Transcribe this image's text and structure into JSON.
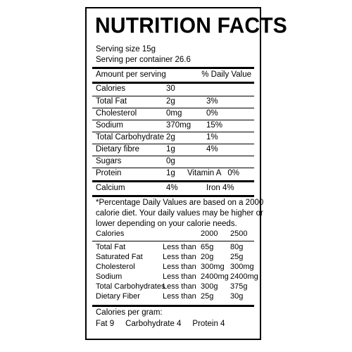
{
  "title": "NUTRITION FACTS",
  "serving_size": "Serving size 15g",
  "servings_per_container": "Serving per container 26.6",
  "header": {
    "amount": "Amount per serving",
    "dv": "% Daily Value"
  },
  "rows": [
    {
      "name": "Calories",
      "amount": "30",
      "dv": ""
    },
    {
      "name": "Total Fat",
      "amount": "2g",
      "dv": "3%"
    },
    {
      "name": "Cholesterol",
      "amount": "0mg",
      "dv": "0%"
    },
    {
      "name": "Sodium",
      "amount": "370mg",
      "dv": "15%"
    },
    {
      "name": "Total Carbohydrate",
      "amount": "2g",
      "dv": "1%"
    },
    {
      "name": "Dietary fibre",
      "amount": "1g",
      "dv": "4%"
    },
    {
      "name": "Sugars",
      "amount": "0g",
      "dv": ""
    },
    {
      "name": "Protein",
      "amount": "1g",
      "dv": "Vitamin A   0%"
    }
  ],
  "calcium_row": {
    "name": "Calcium",
    "amount": "4%",
    "dv": "Iron 4%"
  },
  "footnote": [
    "*Percentage Daily Values are based on a 2000",
    "calorie diet. Your daily values may be higher or",
    "lower depending on your calorie needs."
  ],
  "ref_header": {
    "label": "Calories",
    "v1": "2000",
    "v2": "2500"
  },
  "ref_rows": [
    {
      "name": "Total Fat",
      "cmp": "Less than",
      "v1": "65g",
      "v2": "80g"
    },
    {
      "name": "Saturated Fat",
      "cmp": "Less than",
      "v1": "20g",
      "v2": "25g"
    },
    {
      "name": "Cholesterol",
      "cmp": "Less than",
      "v1": "300mg",
      "v2": "300mg"
    },
    {
      "name": "Sodium",
      "cmp": "Less than",
      "v1": "2400mg",
      "v2": "2400mg"
    },
    {
      "name": "Total Carbohydrates",
      "cmp": "Less than",
      "v1": "300g",
      "v2": "375g"
    },
    {
      "name": "Dietary Fiber",
      "cmp": "Less than",
      "v1": "25g",
      "v2": "30g"
    }
  ],
  "per_gram": {
    "heading": "Calories per gram:",
    "line": "Fat 9     Carbohydrate 4     Protein 4"
  }
}
